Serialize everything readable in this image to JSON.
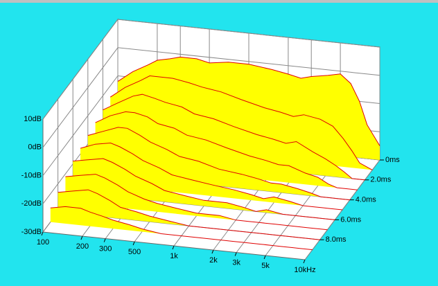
{
  "chart_data": {
    "type": "waterfall",
    "x": [
      100,
      130,
      170,
      200,
      250,
      300,
      400,
      500,
      700,
      1000,
      1500,
      2000,
      2500,
      3000,
      4000,
      5000,
      6000,
      7000,
      8000,
      10000
    ],
    "z": [
      0,
      1,
      2,
      3,
      4,
      5,
      6,
      7,
      8,
      9
    ],
    "series": [
      {
        "values": [
          -12,
          -8,
          -5,
          -3,
          -2,
          -1,
          -1,
          -2,
          -1,
          -1,
          -2,
          -3,
          -4,
          -3,
          -2,
          -1,
          -4,
          -10,
          -18,
          -25
        ]
      },
      {
        "values": [
          -14,
          -10,
          -7,
          -5,
          -5,
          -5,
          -6,
          -7,
          -8,
          -10,
          -12,
          -13,
          -14,
          -13,
          -14,
          -16,
          -20,
          -24,
          -28,
          -30
        ]
      },
      {
        "values": [
          -15,
          -12,
          -9,
          -8,
          -9,
          -10,
          -11,
          -13,
          -14,
          -16,
          -18,
          -19,
          -20,
          -19,
          -22,
          -24,
          -26,
          -28,
          -30,
          -30
        ]
      },
      {
        "values": [
          -16,
          -13,
          -11,
          -11,
          -12,
          -14,
          -15,
          -17,
          -18,
          -20,
          -22,
          -23,
          -24,
          -24,
          -26,
          -27,
          -29,
          -30,
          -30,
          -30
        ]
      },
      {
        "values": [
          -17,
          -15,
          -13,
          -13,
          -15,
          -17,
          -19,
          -21,
          -22,
          -24,
          -25,
          -26,
          -27,
          -27,
          -28,
          -29,
          -30,
          -30,
          -30,
          -30
        ]
      },
      {
        "values": [
          -18,
          -16,
          -15,
          -16,
          -18,
          -20,
          -22,
          -24,
          -25,
          -26,
          -27,
          -28,
          -29,
          -28,
          -29,
          -30,
          -30,
          -30,
          -30,
          -30
        ]
      },
      {
        "values": [
          -19,
          -18,
          -17,
          -18,
          -20,
          -22,
          -24,
          -26,
          -27,
          -28,
          -28,
          -29,
          -30,
          -29,
          -30,
          -30,
          -30,
          -30,
          -30,
          -30
        ]
      },
      {
        "values": [
          -21,
          -20,
          -19,
          -20,
          -22,
          -24,
          -26,
          -27,
          -28,
          -29,
          -29,
          -30,
          -30,
          -30,
          -30,
          -30,
          -30,
          -30,
          -30,
          -30
        ]
      },
      {
        "values": [
          -23,
          -22,
          -21,
          -22,
          -24,
          -26,
          -27,
          -28,
          -29,
          -30,
          -30,
          -30,
          -30,
          -30,
          -30,
          -30,
          -30,
          -30,
          -30,
          -30
        ]
      },
      {
        "values": [
          -25,
          -24,
          -24,
          -25,
          -26,
          -27,
          -28,
          -29,
          -30,
          -30,
          -30,
          -30,
          -30,
          -30,
          -30,
          -30,
          -30,
          -30,
          -30,
          -30
        ]
      }
    ],
    "xlim": [
      100,
      10000
    ],
    "xticks": [
      100,
      200,
      300,
      500,
      {
        "value": 1000,
        "label": "1k"
      },
      {
        "value": 2000,
        "label": "2k"
      },
      {
        "value": 3000,
        "label": "3k"
      },
      {
        "value": 5000,
        "label": "5k"
      },
      {
        "value": 10000,
        "label": "10kHz"
      }
    ],
    "ylim": [
      -30,
      10
    ],
    "yticks": [
      {
        "value": 10,
        "label": "10dB"
      },
      {
        "value": 0,
        "label": "0dB"
      },
      {
        "value": -10,
        "label": "-10dB"
      },
      {
        "value": -20,
        "label": "-20dB"
      },
      {
        "value": -30,
        "label": "-30dB"
      }
    ],
    "zlim": [
      0,
      10
    ],
    "zticks": [
      {
        "value": 0,
        "label": "0ms"
      },
      {
        "value": 2,
        "label": "2.0ms"
      },
      {
        "value": 4,
        "label": "4.0ms"
      },
      {
        "value": 6,
        "label": "6.0ms"
      },
      {
        "value": 8,
        "label": "8.0ms"
      }
    ],
    "log_x": true,
    "grid": true,
    "fill_color": "#ffff00",
    "line_color": "#e00000",
    "background": "#22e4ee"
  }
}
